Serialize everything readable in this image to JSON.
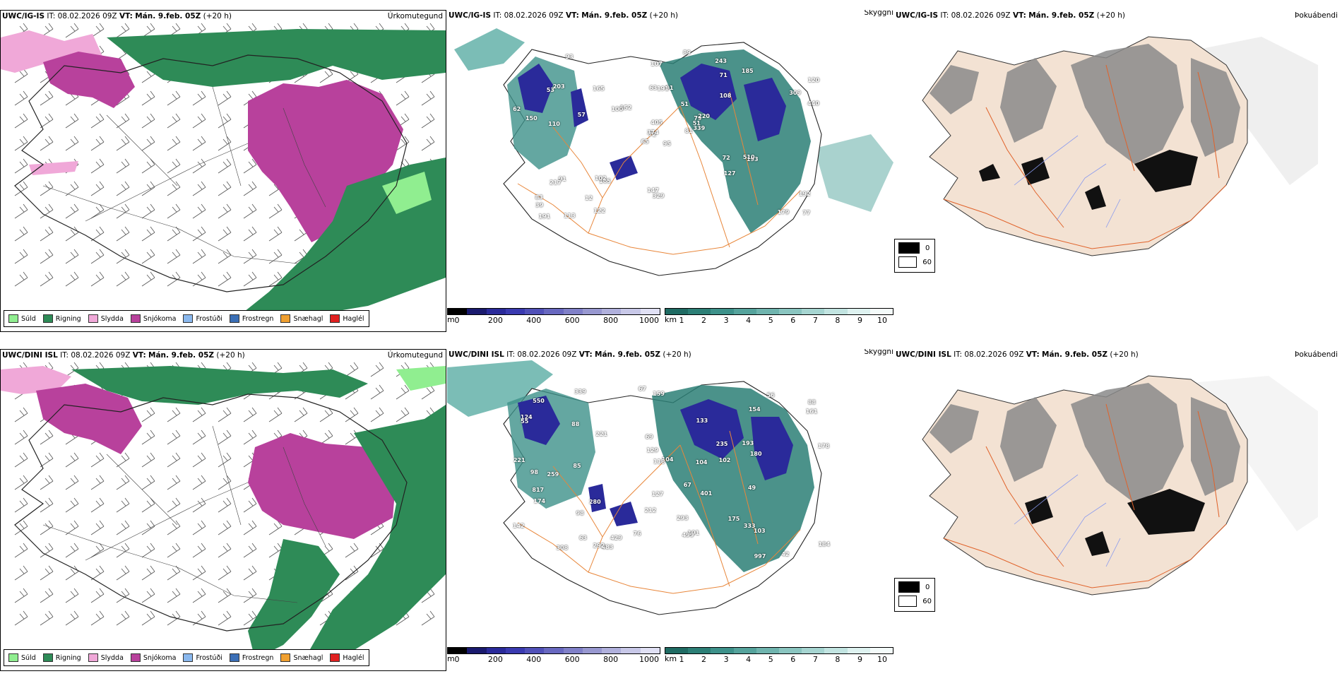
{
  "rows": [
    {
      "model": "UWC/IG-IS",
      "it_label": "IT:",
      "it_value": "08.02.2026 09Z",
      "vt_label": "VT:",
      "vt_value": "Mán. 9.feb. 05Z",
      "lead": "(+20 h)",
      "panel_titles": [
        "Úrkomutegund",
        "Skyggni",
        "Þokuábendi"
      ],
      "elevation_labels": [
        "95",
        "53",
        "72",
        "83",
        "79",
        "165",
        "243",
        "91",
        "71",
        "81",
        "93",
        "77",
        "110",
        "120",
        "65",
        "108",
        "113",
        "63",
        "51",
        "91",
        "152",
        "39",
        "12",
        "191",
        "220",
        "193",
        "203",
        "107",
        "150",
        "72",
        "440",
        "374",
        "147",
        "405",
        "165",
        "185",
        "102",
        "179",
        "192",
        "510",
        "89",
        "100",
        "57",
        "127",
        "122",
        "62",
        "51",
        "191",
        "329",
        "339",
        "217",
        "309"
      ]
    },
    {
      "model": "UWC/DINI ISL",
      "it_label": "IT:",
      "it_value": "08.02.2026 09Z",
      "vt_label": "VT:",
      "vt_value": "Mán. 9.feb. 05Z",
      "lead": "(+20 h)",
      "panel_titles": [
        "Úrkomutegund",
        "Skyggni",
        "Þokuábendi"
      ],
      "elevation_labels": [
        "221",
        "159",
        "193",
        "88",
        "124",
        "42",
        "259",
        "133",
        "69",
        "56",
        "104",
        "49",
        "67",
        "55",
        "88",
        "98",
        "191",
        "98",
        "67",
        "212",
        "175",
        "103",
        "161",
        "129",
        "63",
        "118",
        "401",
        "339",
        "483",
        "499",
        "817",
        "997",
        "104",
        "308",
        "292",
        "174",
        "180",
        "550",
        "429",
        "221",
        "293",
        "102",
        "184",
        "178",
        "127",
        "280",
        "154",
        "142",
        "76",
        "85",
        "235",
        "333"
      ]
    }
  ],
  "precip_legend": [
    {
      "label": "Súld",
      "color": "#90ee90"
    },
    {
      "label": "Rigning",
      "color": "#2e8b57"
    },
    {
      "label": "Slydda",
      "color": "#f0a8d8"
    },
    {
      "label": "Snjókoma",
      "color": "#b8419c"
    },
    {
      "label": "Frostúði",
      "color": "#8ab8ee"
    },
    {
      "label": "Frostregn",
      "color": "#3b6fb6"
    },
    {
      "label": "Snæhagl",
      "color": "#f0a030"
    },
    {
      "label": "Haglél",
      "color": "#e02020"
    }
  ],
  "elevation_scale": {
    "unit": "m",
    "ticks": [
      "0",
      "200",
      "400",
      "600",
      "800",
      "1000"
    ],
    "colors": [
      "#000000",
      "#1a1a6e",
      "#2a2a9a",
      "#3a3ab0",
      "#5050b8",
      "#6868c0",
      "#8080c8",
      "#9898d0",
      "#b0b0dc",
      "#c8c8e8",
      "#e0e0f4"
    ]
  },
  "visibility_scale": {
    "unit": "km",
    "ticks": [
      "1",
      "2",
      "3",
      "4",
      "5",
      "6",
      "7",
      "8",
      "9",
      "10"
    ],
    "colors": [
      "#1f6b63",
      "#2c7f76",
      "#3d918a",
      "#55a39c",
      "#6fb4ae",
      "#8ac5c0",
      "#a6d5d1",
      "#c2e4e1",
      "#def2f0",
      "#f4fbfa"
    ]
  },
  "fog_legend": [
    {
      "label": "0",
      "color": "#000000"
    },
    {
      "label": "60",
      "color": "#ffffff"
    }
  ],
  "colors": {
    "rain": "#2e8b57",
    "snow": "#b8419c",
    "sleet": "#f0a8d8",
    "drizzle": "#90ee90",
    "land": "#f3e2d3",
    "roads": "#e0622a",
    "roads_p2": "#e8863a",
    "teal": "#4fa79e",
    "deep_blue": "#2a2a9a"
  }
}
